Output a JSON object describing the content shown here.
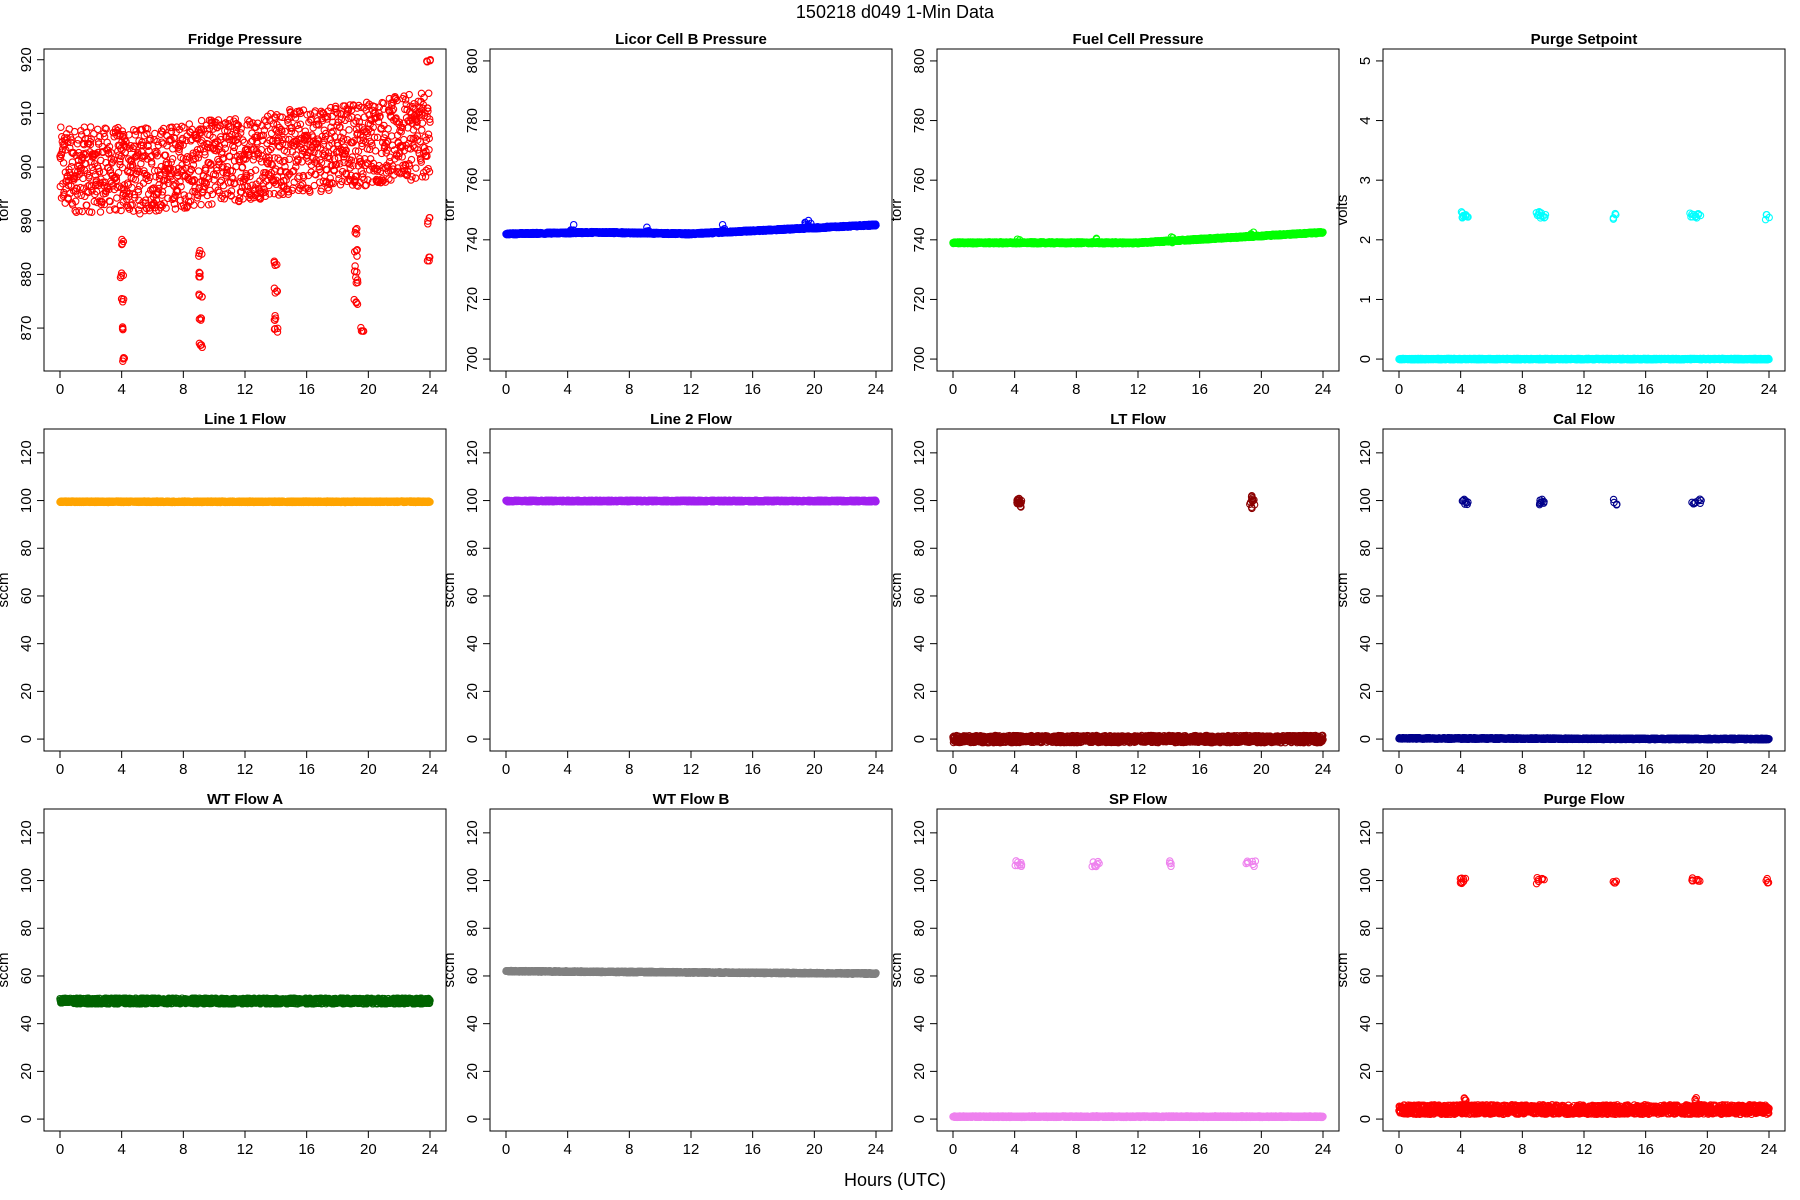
{
  "figure": {
    "title": "150218   d049   1-Min Data",
    "xlabel": "Hours (UTC)"
  },
  "chart_data": [
    {
      "type": "scatter",
      "title": "Fridge Pressure",
      "ylabel": "torr",
      "color": "#ff0000",
      "marker": "open-circle",
      "xlim": [
        0,
        24
      ],
      "ylim": [
        862,
        922
      ],
      "xticks": [
        0,
        4,
        8,
        12,
        16,
        20,
        24
      ],
      "yticks": [
        870,
        880,
        890,
        900,
        910,
        920
      ],
      "series": [
        {
          "segments": [
            {
              "x": [
                0,
                3.9
              ],
              "y": [
                899.5,
                899.5
              ],
              "spread": 8
            },
            {
              "x": [
                3.9,
                4.5
              ],
              "y": [
                899.5,
                899.5
              ],
              "spread": 8
            },
            {
              "x": [
                4.5,
                24
              ],
              "y": [
                899,
                906
              ],
              "spread": 8
            }
          ],
          "outliers": [
            {
              "x": 4.05,
              "y": [
                864,
                870,
                875,
                880,
                886
              ]
            },
            {
              "x": 9.1,
              "y": [
                867,
                872,
                876,
                880,
                884
              ]
            },
            {
              "x": 14.0,
              "y": [
                869.5,
                872,
                877,
                882
              ]
            },
            {
              "x": 19.2,
              "y": [
                875,
                879,
                881,
                884,
                888
              ]
            },
            {
              "x": 19.6,
              "y": [
                869.5
              ]
            },
            {
              "x": 23.9,
              "y": [
                883,
                890,
                919.5
              ]
            }
          ]
        }
      ]
    },
    {
      "type": "scatter",
      "title": "Licor Cell B Pressure",
      "ylabel": "torr",
      "color": "#0000ff",
      "marker": "open-circle",
      "xlim": [
        0,
        24
      ],
      "ylim": [
        696,
        804
      ],
      "xticks": [
        0,
        4,
        8,
        12,
        16,
        20,
        24
      ],
      "yticks": [
        700,
        720,
        740,
        760,
        780,
        800
      ],
      "series": [
        {
          "segments": [
            {
              "x": [
                0,
                6
              ],
              "y": [
                742,
                742.5
              ],
              "spread": 0.3
            },
            {
              "x": [
                6,
                12
              ],
              "y": [
                742.5,
                742
              ],
              "spread": 0.3
            },
            {
              "x": [
                12,
                24
              ],
              "y": [
                742,
                745
              ],
              "spread": 0.3
            }
          ],
          "outliers": [
            {
              "x": 4.3,
              "y": [
                744
              ]
            },
            {
              "x": 9.2,
              "y": [
                743.5
              ]
            },
            {
              "x": 14.1,
              "y": [
                744
              ]
            },
            {
              "x": 19.4,
              "y": [
                745
              ]
            },
            {
              "x": 19.7,
              "y": [
                745.5
              ]
            }
          ]
        }
      ]
    },
    {
      "type": "scatter",
      "title": "Fuel Cell Pressure",
      "ylabel": "torr",
      "color": "#00ff00",
      "marker": "open-circle",
      "xlim": [
        0,
        24
      ],
      "ylim": [
        696,
        804
      ],
      "xticks": [
        0,
        4,
        8,
        12,
        16,
        20,
        24
      ],
      "yticks": [
        700,
        720,
        740,
        760,
        780,
        800
      ],
      "series": [
        {
          "segments": [
            {
              "x": [
                0,
                8
              ],
              "y": [
                739,
                739
              ],
              "spread": 0.3
            },
            {
              "x": [
                8,
                12
              ],
              "y": [
                739,
                739
              ],
              "spread": 0.3
            },
            {
              "x": [
                12,
                24
              ],
              "y": [
                739,
                742.5
              ],
              "spread": 0.3
            }
          ],
          "outliers": [
            {
              "x": 4.2,
              "y": [
                740
              ]
            },
            {
              "x": 9.3,
              "y": [
                739.5
              ]
            },
            {
              "x": 14.2,
              "y": [
                740
              ]
            },
            {
              "x": 19.4,
              "y": [
                741.5
              ]
            }
          ]
        }
      ]
    },
    {
      "type": "scatter",
      "title": "Purge Setpoint",
      "ylabel": "volts",
      "color": "#00ffff",
      "marker": "open-circle",
      "xlim": [
        0,
        24
      ],
      "ylim": [
        -0.2,
        5.2
      ],
      "xticks": [
        0,
        4,
        8,
        12,
        16,
        20,
        24
      ],
      "yticks": [
        0,
        1,
        2,
        3,
        4,
        5
      ],
      "series": [
        {
          "segments": [
            {
              "x": [
                0,
                24
              ],
              "y": [
                0,
                0
              ],
              "spread": 0.01
            }
          ],
          "outliers": [
            {
              "x": 4.0,
              "y": [
                2.42
              ]
            },
            {
              "x": 4.2,
              "y": [
                2.42
              ]
            },
            {
              "x": 4.4,
              "y": [
                2.42
              ]
            },
            {
              "x": 9.0,
              "y": [
                2.42
              ]
            },
            {
              "x": 9.2,
              "y": [
                2.42
              ]
            },
            {
              "x": 9.4,
              "y": [
                2.42
              ]
            },
            {
              "x": 14.0,
              "y": [
                2.4
              ]
            },
            {
              "x": 19.0,
              "y": [
                2.4
              ]
            },
            {
              "x": 19.2,
              "y": [
                2.42
              ]
            },
            {
              "x": 19.5,
              "y": [
                2.42
              ]
            },
            {
              "x": 23.9,
              "y": [
                2.38
              ]
            }
          ]
        }
      ]
    },
    {
      "type": "scatter",
      "title": "Line 1 Flow",
      "ylabel": "sccm",
      "color": "#ffa500",
      "marker": "open-circle",
      "xlim": [
        0,
        24
      ],
      "ylim": [
        -5,
        130
      ],
      "xticks": [
        0,
        4,
        8,
        12,
        16,
        20,
        24
      ],
      "yticks": [
        0,
        20,
        40,
        60,
        80,
        100,
        120
      ],
      "series": [
        {
          "segments": [
            {
              "x": [
                0,
                24
              ],
              "y": [
                99.5,
                99.5
              ],
              "spread": 0.3
            }
          ],
          "outliers": []
        }
      ]
    },
    {
      "type": "scatter",
      "title": "Line 2 Flow",
      "ylabel": "sccm",
      "color": "#a020f0",
      "marker": "open-circle",
      "xlim": [
        0,
        24
      ],
      "ylim": [
        -5,
        130
      ],
      "xticks": [
        0,
        4,
        8,
        12,
        16,
        20,
        24
      ],
      "yticks": [
        0,
        20,
        40,
        60,
        80,
        100,
        120
      ],
      "series": [
        {
          "segments": [
            {
              "x": [
                0,
                24
              ],
              "y": [
                99.8,
                99.8
              ],
              "spread": 0.3
            }
          ],
          "outliers": []
        }
      ]
    },
    {
      "type": "scatter",
      "title": "LT Flow",
      "ylabel": "sccm",
      "color": "#8b0000",
      "marker": "open-circle",
      "xlim": [
        0,
        24
      ],
      "ylim": [
        -5,
        130
      ],
      "xticks": [
        0,
        4,
        8,
        12,
        16,
        20,
        24
      ],
      "yticks": [
        0,
        20,
        40,
        60,
        80,
        100,
        120
      ],
      "series": [
        {
          "segments": [
            {
              "x": [
                0,
                24
              ],
              "y": [
                0,
                0
              ],
              "spread": 1.5
            }
          ],
          "outliers": [
            {
              "x": 4.2,
              "y": [
                99,
                101
              ]
            },
            {
              "x": 4.4,
              "y": [
                100,
                98
              ]
            },
            {
              "x": 19.3,
              "y": [
                98,
                101
              ]
            },
            {
              "x": 19.5,
              "y": [
                99
              ]
            }
          ]
        }
      ]
    },
    {
      "type": "scatter",
      "title": "Cal Flow",
      "ylabel": "sccm",
      "color": "#00008b",
      "marker": "open-circle",
      "xlim": [
        0,
        24
      ],
      "ylim": [
        -5,
        130
      ],
      "xticks": [
        0,
        4,
        8,
        12,
        16,
        20,
        24
      ],
      "yticks": [
        0,
        20,
        40,
        60,
        80,
        100,
        120
      ],
      "series": [
        {
          "segments": [
            {
              "x": [
                0,
                24
              ],
              "y": [
                0.3,
                0
              ],
              "spread": 0.3
            }
          ],
          "outliers": [
            {
              "x": 4.2,
              "y": [
                99.5
              ]
            },
            {
              "x": 4.4,
              "y": [
                99.5
              ]
            },
            {
              "x": 9.1,
              "y": [
                99.5
              ]
            },
            {
              "x": 9.4,
              "y": [
                99.5
              ]
            },
            {
              "x": 14.0,
              "y": [
                99.5
              ]
            },
            {
              "x": 19.1,
              "y": [
                99.5
              ]
            },
            {
              "x": 19.5,
              "y": [
                99.5
              ]
            }
          ]
        }
      ]
    },
    {
      "type": "scatter",
      "title": "WT Flow A",
      "ylabel": "sccm",
      "color": "#006400",
      "marker": "open-circle",
      "xlim": [
        0,
        24
      ],
      "ylim": [
        -5,
        130
      ],
      "xticks": [
        0,
        4,
        8,
        12,
        16,
        20,
        24
      ],
      "yticks": [
        0,
        20,
        40,
        60,
        80,
        100,
        120
      ],
      "series": [
        {
          "segments": [
            {
              "x": [
                0,
                24
              ],
              "y": [
                49.5,
                49.5
              ],
              "spread": 1.2
            }
          ],
          "outliers": []
        }
      ]
    },
    {
      "type": "scatter",
      "title": "WT Flow B",
      "ylabel": "sccm",
      "color": "#808080",
      "marker": "open-circle",
      "xlim": [
        0,
        24
      ],
      "ylim": [
        -5,
        130
      ],
      "xticks": [
        0,
        4,
        8,
        12,
        16,
        20,
        24
      ],
      "yticks": [
        0,
        20,
        40,
        60,
        80,
        100,
        120
      ],
      "series": [
        {
          "segments": [
            {
              "x": [
                0,
                24
              ],
              "y": [
                62,
                61
              ],
              "spread": 0.3
            }
          ],
          "outliers": []
        }
      ]
    },
    {
      "type": "scatter",
      "title": "SP Flow",
      "ylabel": "sccm",
      "color": "#ee82ee",
      "marker": "open-circle",
      "xlim": [
        0,
        24
      ],
      "ylim": [
        -5,
        130
      ],
      "xticks": [
        0,
        4,
        8,
        12,
        16,
        20,
        24
      ],
      "yticks": [
        0,
        20,
        40,
        60,
        80,
        100,
        120
      ],
      "series": [
        {
          "segments": [
            {
              "x": [
                0,
                24
              ],
              "y": [
                1,
                1
              ],
              "spread": 0.3
            }
          ],
          "outliers": [
            {
              "x": 4.1,
              "y": [
                107
              ]
            },
            {
              "x": 4.4,
              "y": [
                107
              ]
            },
            {
              "x": 9.1,
              "y": [
                107
              ]
            },
            {
              "x": 9.4,
              "y": [
                107
              ]
            },
            {
              "x": 14.1,
              "y": [
                107
              ]
            },
            {
              "x": 19.1,
              "y": [
                107
              ]
            },
            {
              "x": 19.5,
              "y": [
                107
              ]
            }
          ]
        }
      ]
    },
    {
      "type": "scatter",
      "title": "Purge Flow",
      "ylabel": "sccm",
      "color": "#ff0000",
      "marker": "open-circle",
      "xlim": [
        0,
        24
      ],
      "ylim": [
        -5,
        130
      ],
      "xticks": [
        0,
        4,
        8,
        12,
        16,
        20,
        24
      ],
      "yticks": [
        0,
        20,
        40,
        60,
        80,
        100,
        120
      ],
      "series": [
        {
          "segments": [
            {
              "x": [
                0,
                24
              ],
              "y": [
                4,
                4
              ],
              "spread": 2
            }
          ],
          "outliers": [
            {
              "x": 4.0,
              "y": [
                100
              ]
            },
            {
              "x": 4.2,
              "y": [
                100
              ]
            },
            {
              "x": 9.0,
              "y": [
                100
              ]
            },
            {
              "x": 9.3,
              "y": [
                100
              ]
            },
            {
              "x": 14.0,
              "y": [
                100
              ]
            },
            {
              "x": 19.0,
              "y": [
                100
              ]
            },
            {
              "x": 19.4,
              "y": [
                100
              ]
            },
            {
              "x": 23.9,
              "y": [
                100
              ]
            },
            {
              "x": 4.3,
              "y": [
                8
              ]
            },
            {
              "x": 19.2,
              "y": [
                8.5
              ]
            }
          ]
        }
      ]
    }
  ]
}
